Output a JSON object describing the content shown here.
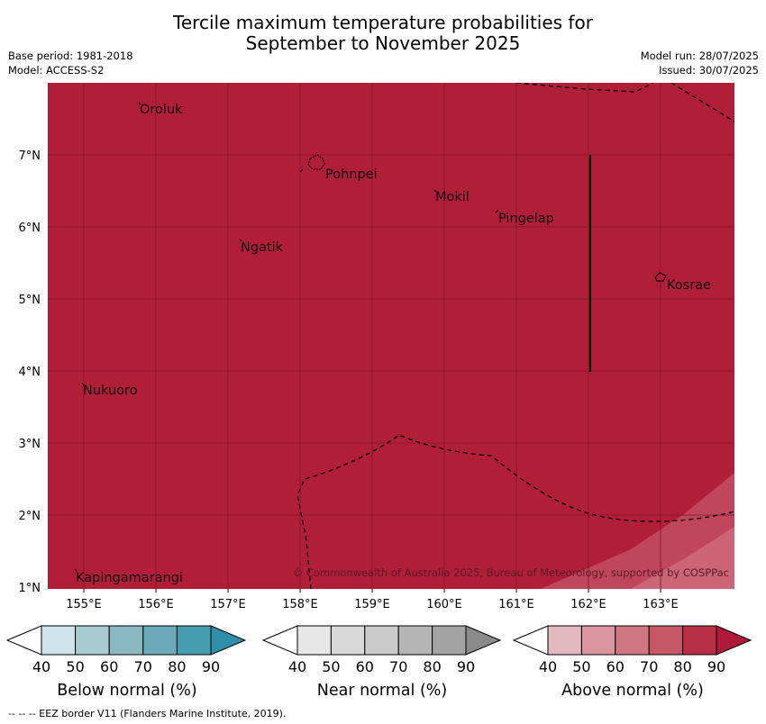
{
  "title_line1": "Tercile maximum temperature probabilities for",
  "title_line2": "September to November 2025",
  "base_period": "Base period: 1981-2018",
  "model": "Model: ACCESS-S2",
  "model_run": "Model run: 28/07/2025",
  "issued": "Issued: 30/07/2025",
  "copyright": "© Commonwealth of Australia 2025, Bureau of Meteorology, supported by COSPPac",
  "footer": "--  --  -- EEZ border V11 (Flanders Marine Institute, 2019).",
  "lat_ticks": [
    "7°N",
    "6°N",
    "5°N",
    "4°N",
    "3°N",
    "2°N",
    "1°N"
  ],
  "lon_ticks": [
    "155°E",
    "156°E",
    "157°E",
    "158°E",
    "159°E",
    "160°E",
    "161°E",
    "162°E",
    "163°E"
  ],
  "places": [
    {
      "name": "Oroluk"
    },
    {
      "name": "Pohnpei"
    },
    {
      "name": "Mokil"
    },
    {
      "name": "Pingelap"
    },
    {
      "name": "Ngatik"
    },
    {
      "name": "Kosrae"
    },
    {
      "name": "Nukuoro"
    },
    {
      "name": "Kapingamarangi"
    }
  ],
  "legends": [
    {
      "label": "Below normal (%)",
      "ticks": [
        "40",
        "50",
        "60",
        "70",
        "80",
        "90"
      ],
      "colors": [
        "#ffffff",
        "#cde5ea",
        "#a8cbd1",
        "#8cb8c2",
        "#6aaab9",
        "#479eb1",
        "#2f8fa8"
      ]
    },
    {
      "label": "Near normal (%)",
      "ticks": [
        "40",
        "50",
        "60",
        "70",
        "80",
        "90"
      ],
      "colors": [
        "#ffffff",
        "#e6e6e6",
        "#d9d9d9",
        "#cbcbcb",
        "#b5b5b5",
        "#a3a3a3",
        "#8a8a8a"
      ]
    },
    {
      "label": "Above normal (%)",
      "ticks": [
        "40",
        "50",
        "60",
        "70",
        "80",
        "90"
      ],
      "colors": [
        "#ffffff",
        "#e3b9c0",
        "#d9959f",
        "#cf7884",
        "#c65766",
        "#b72f45",
        "#ae1a38"
      ]
    }
  ],
  "colors": {
    "map_fill": "#b11e38",
    "lighter_band": "#c0475b",
    "lightest_band": "#cc6677"
  }
}
